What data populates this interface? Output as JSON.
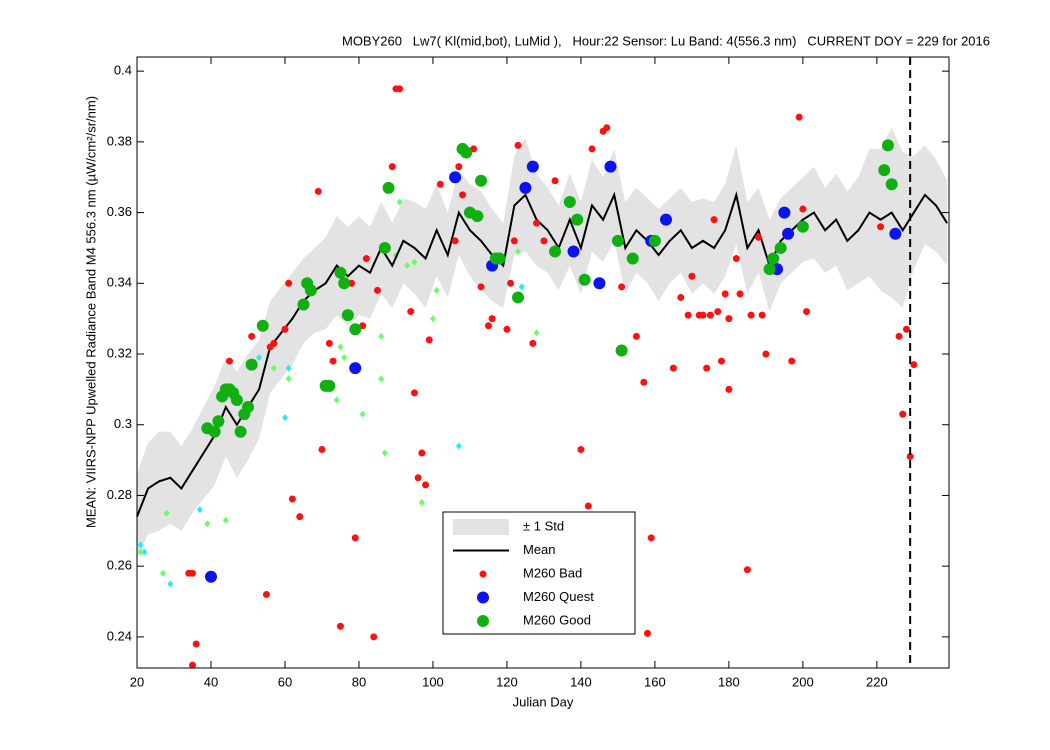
{
  "chart_data": {
    "type": "line",
    "title": "MOBY260   Lw7( Kl(mid,bot), LuMid ),   Hour:22 Sensor: Lu Band: 4(556.3 nm)   CURRENT DOY = 229 for 2016",
    "xlabel": "Julian Day",
    "ylabel": "MEAN: VIIRS-NPP Upwelled Radiance Band M4 556.3 nm (µW/cm²/sr/nm)",
    "xlim": [
      20,
      239.5
    ],
    "ylim": [
      0.2312,
      0.404
    ],
    "xticks": [
      20,
      40,
      60,
      80,
      100,
      120,
      140,
      160,
      180,
      200,
      220
    ],
    "yticks": [
      0.24,
      0.26,
      0.28,
      0.3,
      0.32,
      0.34,
      0.36,
      0.38,
      0.4
    ],
    "vline": 229,
    "x": [
      20,
      23,
      26,
      29,
      32,
      35,
      38,
      41,
      44,
      47,
      50,
      53,
      56,
      59,
      62,
      65,
      68,
      71,
      74,
      77,
      80,
      83,
      86,
      89,
      92,
      95,
      98,
      101,
      104,
      107,
      110,
      113,
      116,
      119,
      122,
      125,
      128,
      131,
      134,
      137,
      140,
      143,
      146,
      149,
      152,
      155,
      158,
      161,
      164,
      167,
      170,
      173,
      176,
      179,
      182,
      185,
      188,
      191,
      194,
      197,
      200,
      203,
      206,
      209,
      212,
      215,
      218,
      221,
      224,
      227,
      230,
      233,
      236,
      239
    ],
    "mean": {
      "name": "Mean",
      "color": "#000000",
      "values": [
        0.274,
        0.282,
        0.284,
        0.285,
        0.282,
        0.287,
        0.292,
        0.297,
        0.305,
        0.3,
        0.305,
        0.31,
        0.322,
        0.326,
        0.33,
        0.335,
        0.338,
        0.34,
        0.345,
        0.342,
        0.345,
        0.343,
        0.35,
        0.345,
        0.352,
        0.35,
        0.347,
        0.355,
        0.348,
        0.36,
        0.355,
        0.352,
        0.348,
        0.345,
        0.362,
        0.365,
        0.358,
        0.355,
        0.35,
        0.358,
        0.35,
        0.362,
        0.358,
        0.365,
        0.35,
        0.355,
        0.352,
        0.348,
        0.352,
        0.355,
        0.35,
        0.352,
        0.35,
        0.355,
        0.365,
        0.35,
        0.355,
        0.345,
        0.352,
        0.355,
        0.358,
        0.36,
        0.355,
        0.358,
        0.352,
        0.355,
        0.36,
        0.358,
        0.36,
        0.355,
        0.36,
        0.365,
        0.362,
        0.357
      ]
    },
    "std": {
      "name": "± 1 Std",
      "color": "#e3e3e3",
      "values": [
        0.012,
        0.013,
        0.014,
        0.013,
        0.012,
        0.012,
        0.013,
        0.014,
        0.014,
        0.015,
        0.015,
        0.014,
        0.013,
        0.013,
        0.013,
        0.012,
        0.012,
        0.013,
        0.014,
        0.014,
        0.014,
        0.013,
        0.013,
        0.012,
        0.012,
        0.013,
        0.014,
        0.013,
        0.012,
        0.012,
        0.013,
        0.014,
        0.013,
        0.012,
        0.014,
        0.016,
        0.013,
        0.012,
        0.012,
        0.013,
        0.013,
        0.013,
        0.012,
        0.013,
        0.013,
        0.012,
        0.012,
        0.013,
        0.012,
        0.012,
        0.013,
        0.012,
        0.013,
        0.013,
        0.014,
        0.013,
        0.012,
        0.013,
        0.012,
        0.012,
        0.012,
        0.013,
        0.012,
        0.013,
        0.014,
        0.015,
        0.018,
        0.02,
        0.024,
        0.022,
        0.016,
        0.014,
        0.013,
        0.012
      ]
    },
    "series": [
      {
        "name": "M260 Bad",
        "color": "#ff1010",
        "marker": "small",
        "x": [
          34,
          35,
          36,
          35,
          45,
          51,
          55,
          56,
          57,
          60,
          61,
          62,
          64,
          69,
          70,
          72,
          73,
          75,
          78,
          79,
          81,
          82,
          84,
          85,
          89,
          90,
          91,
          94,
          95,
          96,
          97,
          98,
          99,
          102,
          106,
          107,
          108,
          111,
          113,
          115,
          116,
          120,
          121,
          122,
          123,
          127,
          128,
          130,
          133,
          140,
          142,
          143,
          146,
          147,
          151,
          152,
          155,
          157,
          158,
          159,
          165,
          167,
          169,
          170,
          172,
          173,
          174,
          175,
          176,
          177,
          178,
          179,
          180,
          180,
          182,
          183,
          185,
          186,
          188,
          189,
          190,
          197,
          199,
          200,
          201,
          221,
          226,
          227,
          228,
          229,
          230
        ],
        "values": [
          0.258,
          0.258,
          0.238,
          0.232,
          0.318,
          0.325,
          0.252,
          0.322,
          0.323,
          0.327,
          0.34,
          0.279,
          0.274,
          0.366,
          0.293,
          0.323,
          0.318,
          0.243,
          0.34,
          0.268,
          0.328,
          0.347,
          0.24,
          0.338,
          0.373,
          0.395,
          0.395,
          0.332,
          0.309,
          0.285,
          0.292,
          0.283,
          0.324,
          0.368,
          0.352,
          0.373,
          0.365,
          0.378,
          0.339,
          0.328,
          0.33,
          0.327,
          0.34,
          0.352,
          0.379,
          0.323,
          0.357,
          0.352,
          0.369,
          0.293,
          0.277,
          0.378,
          0.383,
          0.384,
          0.339,
          0.273,
          0.325,
          0.312,
          0.241,
          0.268,
          0.316,
          0.336,
          0.331,
          0.342,
          0.331,
          0.331,
          0.316,
          0.331,
          0.358,
          0.332,
          0.318,
          0.337,
          0.33,
          0.31,
          0.347,
          0.337,
          0.259,
          0.331,
          0.353,
          0.331,
          0.32,
          0.318,
          0.387,
          0.361,
          0.332,
          0.356,
          0.325,
          0.303,
          0.327,
          0.291,
          0.317
        ]
      },
      {
        "name": "M260 Quest",
        "color": "#0a14f0",
        "marker": "big",
        "x": [
          40,
          79,
          106,
          116,
          125,
          127,
          138,
          145,
          148,
          159,
          163,
          193,
          195,
          196,
          225
        ],
        "values": [
          0.257,
          0.316,
          0.37,
          0.345,
          0.367,
          0.373,
          0.349,
          0.34,
          0.373,
          0.352,
          0.358,
          0.344,
          0.36,
          0.354,
          0.354
        ]
      },
      {
        "name": "M260 Good",
        "color": "#10b010",
        "marker": "big",
        "x": [
          39,
          41,
          42,
          43,
          44,
          45,
          46,
          47,
          48,
          49,
          50,
          51,
          54,
          65,
          66,
          67,
          71,
          72,
          75,
          76,
          77,
          79,
          87,
          88,
          108,
          109,
          110,
          112,
          113,
          117,
          118,
          123,
          133,
          137,
          139,
          141,
          150,
          151,
          154,
          160,
          191,
          192,
          194,
          200,
          222,
          223,
          224
        ],
        "values": [
          0.299,
          0.298,
          0.301,
          0.308,
          0.31,
          0.31,
          0.309,
          0.307,
          0.298,
          0.303,
          0.305,
          0.317,
          0.328,
          0.334,
          0.34,
          0.338,
          0.311,
          0.311,
          0.343,
          0.34,
          0.331,
          0.327,
          0.35,
          0.367,
          0.378,
          0.377,
          0.36,
          0.359,
          0.369,
          0.347,
          0.347,
          0.336,
          0.349,
          0.363,
          0.358,
          0.341,
          0.352,
          0.321,
          0.347,
          0.352,
          0.344,
          0.347,
          0.35,
          0.356,
          0.372,
          0.379,
          0.368
        ]
      },
      {
        "color": "#22eeee",
        "marker": "diamond",
        "x": [
          21,
          22,
          29,
          37,
          53,
          60,
          61,
          107,
          124
        ],
        "values": [
          0.266,
          0.264,
          0.255,
          0.276,
          0.319,
          0.302,
          0.316,
          0.294,
          0.339
        ]
      },
      {
        "color": "#66ff66",
        "marker": "diamond",
        "x": [
          21,
          27,
          28,
          39,
          44,
          57,
          61,
          74,
          75,
          76,
          81,
          86,
          86,
          87,
          90,
          91,
          93,
          95,
          97,
          100,
          101,
          123,
          128
        ],
        "values": [
          0.264,
          0.258,
          0.275,
          0.272,
          0.273,
          0.316,
          0.313,
          0.307,
          0.322,
          0.319,
          0.303,
          0.325,
          0.313,
          0.292,
          0.348,
          0.363,
          0.345,
          0.346,
          0.278,
          0.33,
          0.338,
          0.349,
          0.326
        ]
      }
    ]
  }
}
